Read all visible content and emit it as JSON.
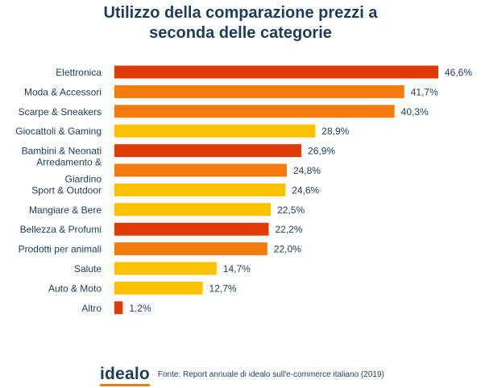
{
  "title_line1": "Utilizzo della comparazione prezzi a",
  "title_line2": "seconda delle categorie",
  "colors": {
    "red": "#e03a06",
    "orange": "#f47b0c",
    "yellow": "#fcc100",
    "title": "#1f3b5a",
    "label": "#1f3b5a"
  },
  "chart_data": {
    "type": "bar",
    "orientation": "horizontal",
    "title": "Utilizzo della comparazione prezzi a seconda delle categorie",
    "categories": [
      [
        "Elettronica"
      ],
      [
        "Moda & Accessori"
      ],
      [
        "Scarpe & Sneakers"
      ],
      [
        "Giocattoli & Gaming"
      ],
      [
        "Bambini & Neonati"
      ],
      [
        "Arredamento &",
        "Giardino"
      ],
      [
        "Sport & Outdoor"
      ],
      [
        "Mangiare & Bere"
      ],
      [
        "Bellezza & Profumi"
      ],
      [
        "Prodotti per animali"
      ],
      [
        "Salute"
      ],
      [
        "Auto & Moto"
      ],
      [
        "Altro"
      ]
    ],
    "values": [
      46.6,
      41.7,
      40.3,
      28.9,
      26.9,
      24.8,
      24.6,
      22.5,
      22.2,
      22.0,
      14.7,
      12.7,
      1.2
    ],
    "value_labels": [
      "46,6%",
      "41,7%",
      "40,3%",
      "28,9%",
      "26,9%",
      "24,8%",
      "24,6%",
      "22,5%",
      "22,2%",
      "22,0%",
      "14,7%",
      "12,7%",
      "1,2%"
    ],
    "bar_colors": [
      "red",
      "orange",
      "orange",
      "yellow",
      "red",
      "orange",
      "yellow",
      "yellow",
      "red",
      "orange",
      "yellow",
      "yellow",
      "red"
    ],
    "xlim": [
      0,
      46.6
    ],
    "grid": false,
    "legend": "none"
  },
  "footer": {
    "logo_text": "idealo",
    "source": "Fonte: Report annuale di idealo sull'e-commerce italiano (2019)"
  }
}
